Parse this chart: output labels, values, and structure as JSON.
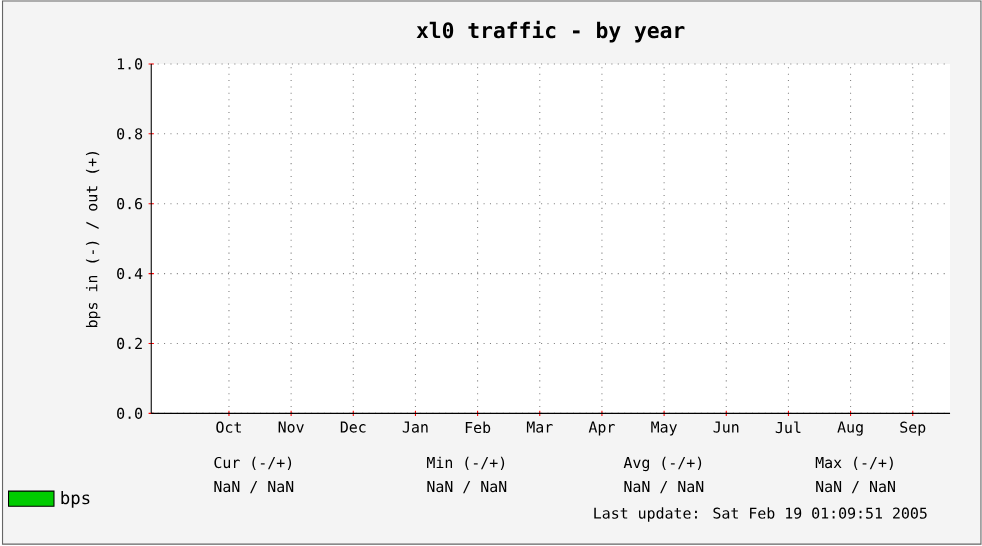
{
  "chart_data": {
    "type": "line",
    "title": "xl0 traffic - by year",
    "ylabel": "bps in (-) / out (+)",
    "categories": [
      "Oct",
      "Nov",
      "Dec",
      "Jan",
      "Feb",
      "Mar",
      "Apr",
      "May",
      "Jun",
      "Jul",
      "Aug",
      "Sep"
    ],
    "series": [
      {
        "name": "bps",
        "color": "#00cc00",
        "values": [
          null,
          null,
          null,
          null,
          null,
          null,
          null,
          null,
          null,
          null,
          null,
          null
        ]
      }
    ],
    "ylim": [
      0,
      1
    ],
    "yticks": [
      {
        "value": 0,
        "label": "0.0"
      },
      {
        "value": 0.2,
        "label": "0.2"
      },
      {
        "value": 0.4,
        "label": "0.4"
      },
      {
        "value": 0.6,
        "label": "0.6"
      },
      {
        "value": 0.8,
        "label": "0.8"
      },
      {
        "value": 1,
        "label": "1.0"
      }
    ],
    "grid": true,
    "legend": "bottom left",
    "annotations": [
      "Cur (-/+)",
      "Min (-/+)",
      "Avg (-/+)",
      "Max (-/+)",
      "NaN /   NaN",
      "NaN /   NaN",
      "NaN /   NaN",
      "NaN /   NaN",
      "Last update: Sat Feb 19 01:09:51 2005"
    ]
  }
}
